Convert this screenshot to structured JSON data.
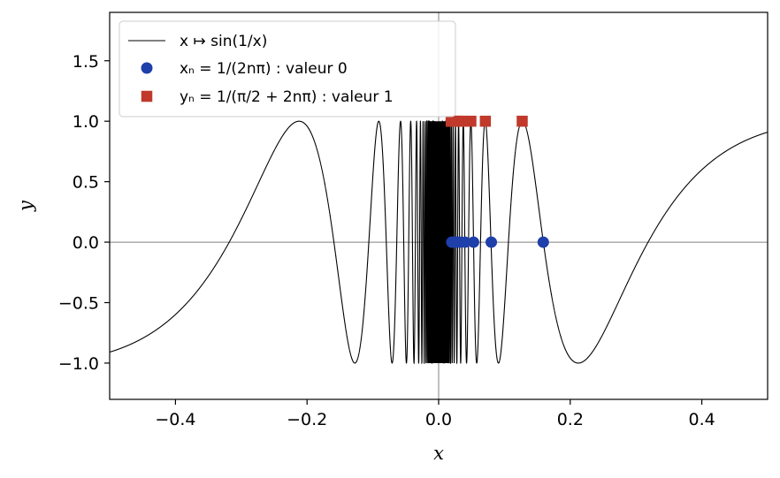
{
  "chart_data": {
    "type": "line",
    "xlabel": "x",
    "ylabel": "y",
    "xlim": [
      -0.5,
      0.5
    ],
    "ylim": [
      -1.3,
      1.9
    ],
    "x_ticks": [
      -0.4,
      -0.2,
      0.0,
      0.2,
      0.4
    ],
    "x_tick_labels": [
      "−0.4",
      "−0.2",
      "0.0",
      "0.2",
      "0.4"
    ],
    "y_ticks": [
      -1.0,
      -0.5,
      0.0,
      0.5,
      1.0,
      1.5
    ],
    "y_tick_labels": [
      "−1.0",
      "−0.5",
      "0.0",
      "0.5",
      "1.0",
      "1.5"
    ],
    "grid": false,
    "reference_lines": {
      "x": 0,
      "y": 0,
      "color": "#808080"
    },
    "legend_position": "top-left",
    "series": [
      {
        "name": "x ↦ sin(1/x)",
        "kind": "line",
        "function": "sin(1/x)",
        "x_range": [
          -0.5,
          0.5
        ],
        "color": "#000000"
      },
      {
        "name": "xₙ = 1/(2nπ) : valeur 0",
        "kind": "scatter",
        "marker": "circle",
        "color": "#1f3faa",
        "points": [
          [
            0.159,
            0
          ],
          [
            0.08,
            0
          ],
          [
            0.053,
            0
          ],
          [
            0.04,
            0
          ],
          [
            0.032,
            0
          ],
          [
            0.027,
            0
          ],
          [
            0.023,
            0
          ],
          [
            0.02,
            0
          ]
        ]
      },
      {
        "name": "yₙ = 1/(π/2 + 2nπ) : valeur 1",
        "kind": "scatter",
        "marker": "square",
        "color": "#c0392b",
        "points": [
          [
            0.127,
            1
          ],
          [
            0.071,
            1
          ],
          [
            0.049,
            1
          ],
          [
            0.037,
            1
          ],
          [
            0.03,
            1
          ],
          [
            0.025,
            1
          ],
          [
            0.022,
            1
          ],
          [
            0.019,
            1
          ]
        ]
      }
    ]
  }
}
